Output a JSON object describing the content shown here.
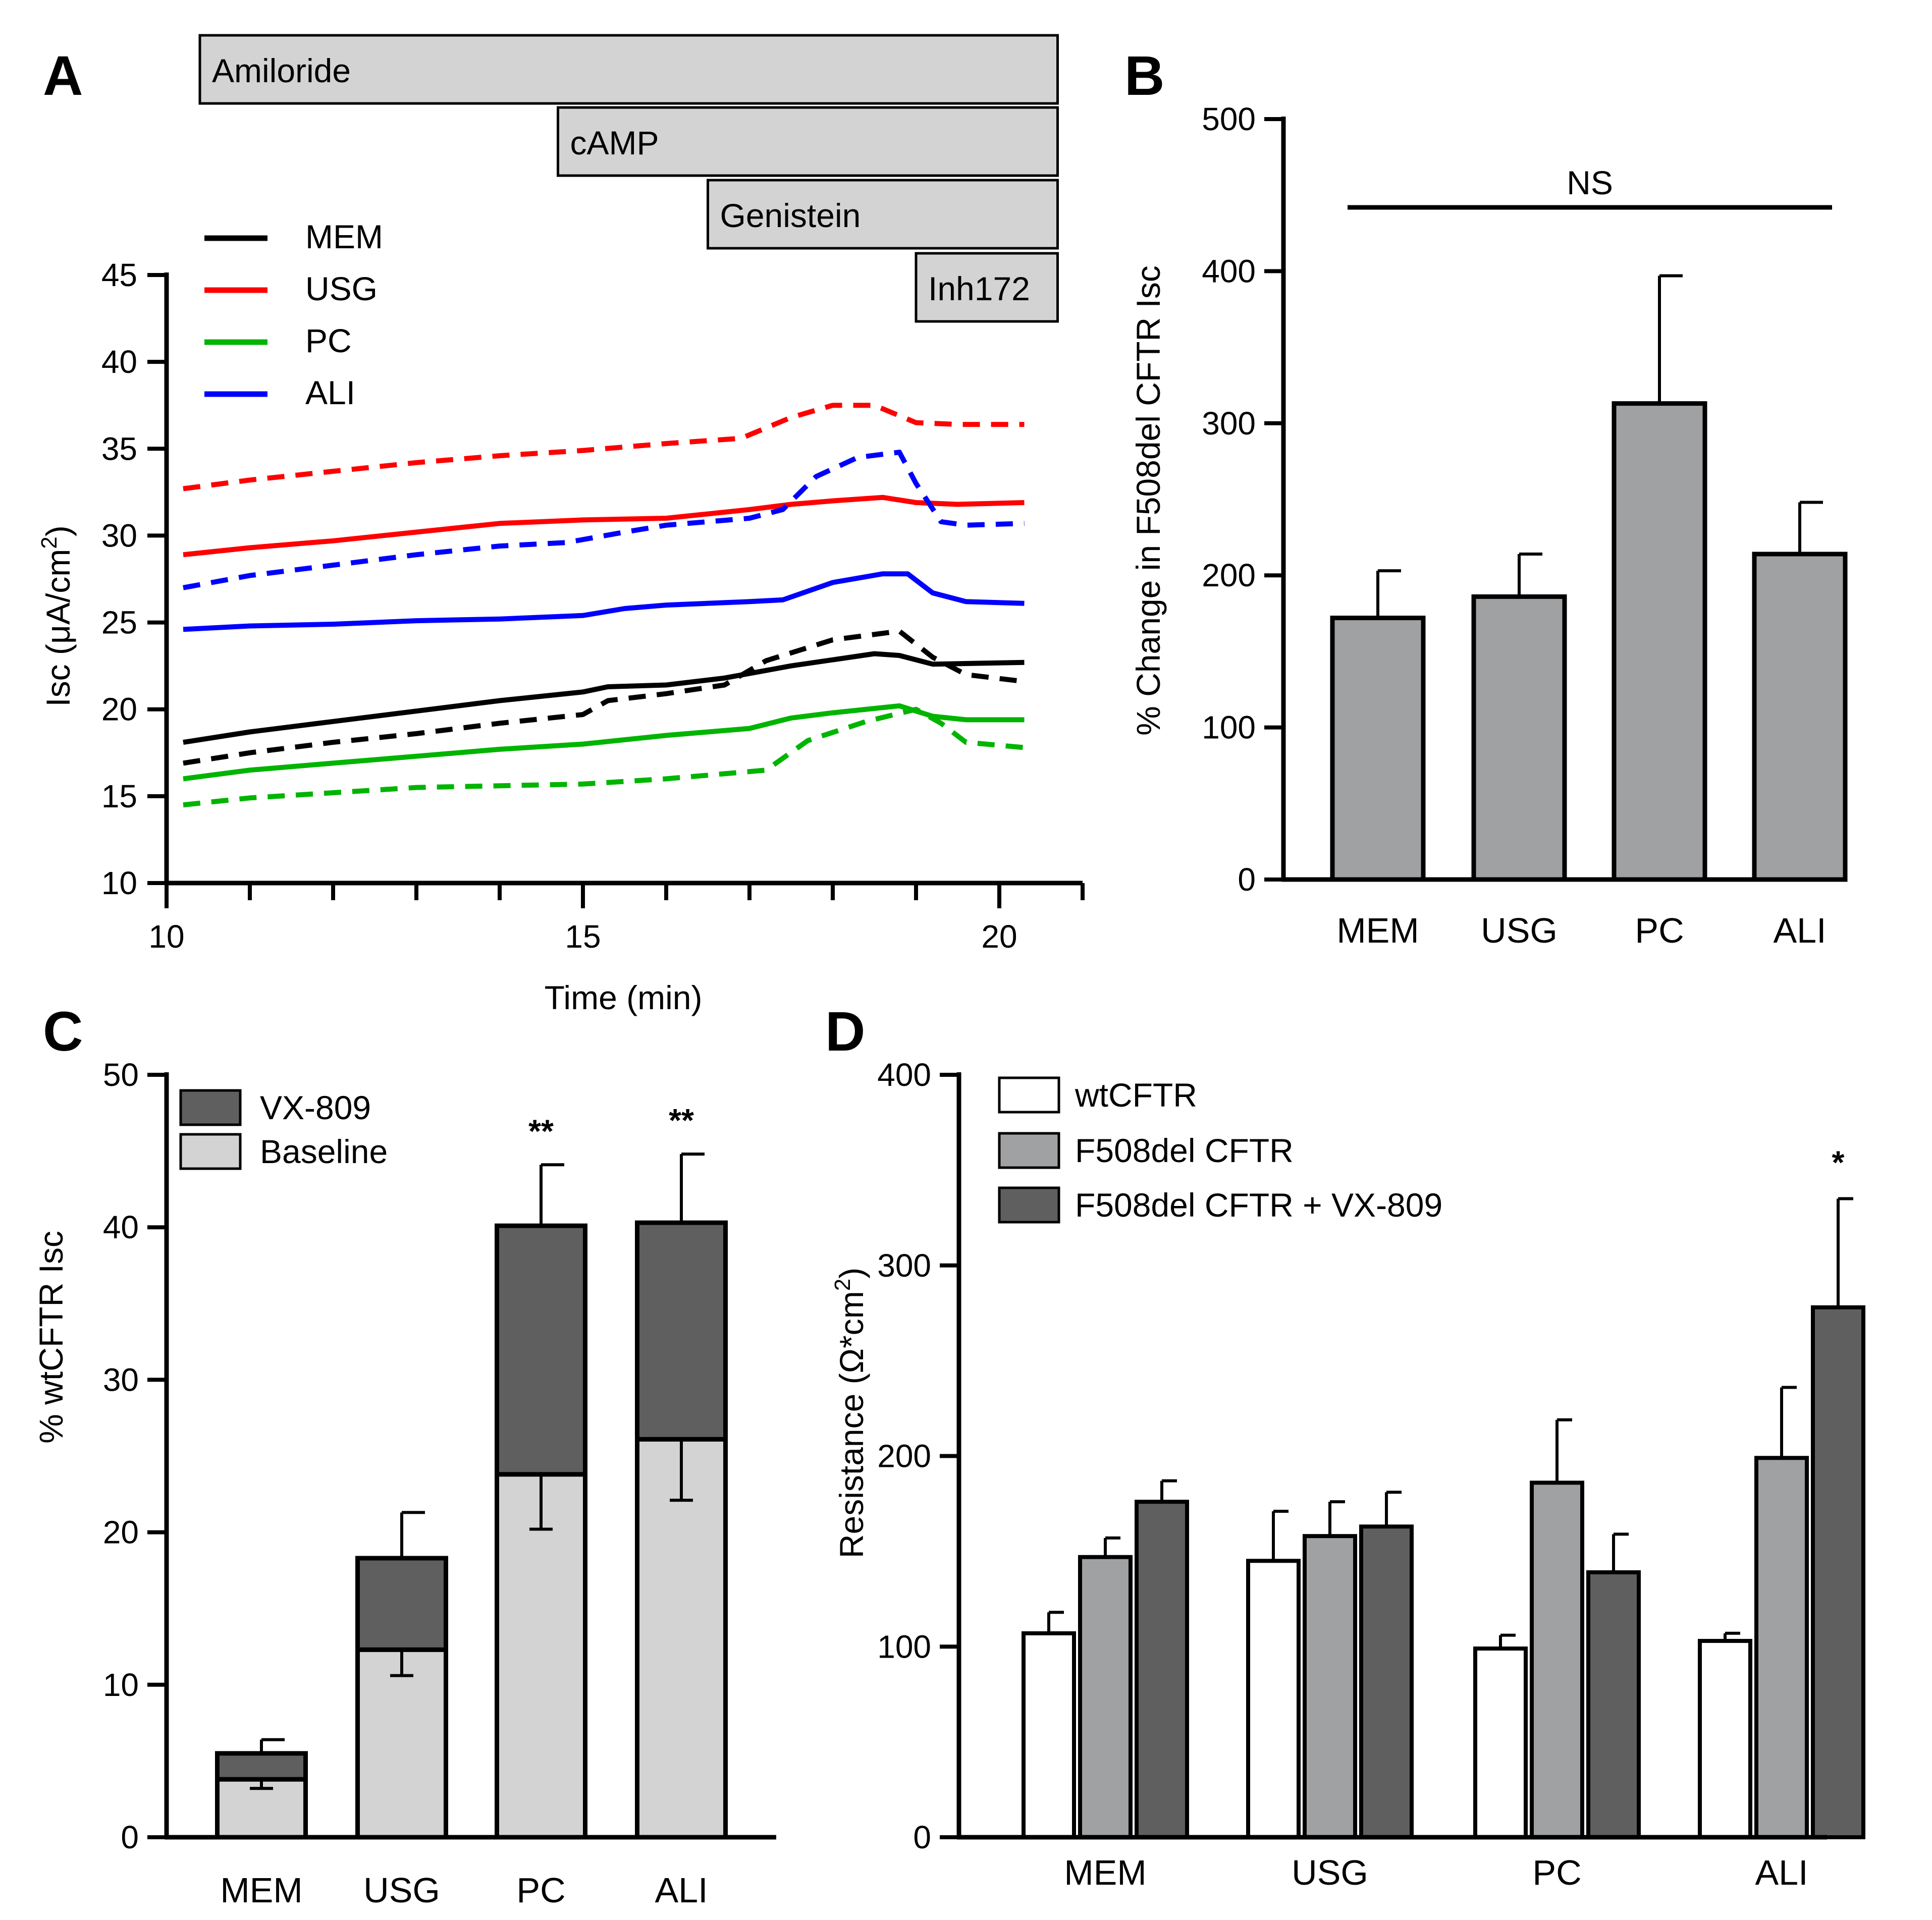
{
  "panel_labels": [
    "A",
    "B",
    "C",
    "D"
  ],
  "chart_data": [
    {
      "id": "A",
      "type": "line",
      "xlabel": "Time (min)",
      "ylabel_main": "Isc (",
      "ylabel_mu": "μ",
      "ylabel_unit": "A/cm",
      "ylabel_sup": "2",
      "ylabel_close": ")",
      "xlim": [
        10,
        21
      ],
      "ylim": [
        10,
        45
      ],
      "xticks": [
        10,
        15,
        20
      ],
      "yticks": [
        10,
        15,
        20,
        25,
        30,
        35,
        40,
        45
      ],
      "treatments": [
        {
          "label": "Amiloride",
          "start": 10.4,
          "end": 20.7
        },
        {
          "label": "cAMP",
          "start": 14.7,
          "end": 20.7
        },
        {
          "label": "Genistein",
          "start": 16.5,
          "end": 20.7
        },
        {
          "label": "Inh172",
          "start": 19.0,
          "end": 20.7
        }
      ],
      "legend": [
        {
          "label": "MEM",
          "color": "#000000"
        },
        {
          "label": "USG",
          "color": "#ff0000"
        },
        {
          "label": "PC",
          "color": "#00b400"
        },
        {
          "label": "ALI",
          "color": "#0000ff"
        }
      ],
      "series": [
        {
          "name": "MEM",
          "style": "solid",
          "color": "#000000",
          "x": [
            10.2,
            11,
            12,
            13,
            14,
            15,
            15.3,
            16,
            16.7,
            17.5,
            18.5,
            18.8,
            19.2,
            20.3
          ],
          "y": [
            18.1,
            18.7,
            19.3,
            19.9,
            20.5,
            21.0,
            21.3,
            21.4,
            21.8,
            22.5,
            23.2,
            23.1,
            22.6,
            22.7
          ]
        },
        {
          "name": "MEM",
          "style": "dashed",
          "color": "#000000",
          "x": [
            10.2,
            11,
            12,
            13,
            14,
            15,
            15.3,
            16,
            16.7,
            17.2,
            18,
            18.8,
            19.2,
            19.6,
            20.3
          ],
          "y": [
            16.9,
            17.5,
            18.1,
            18.6,
            19.2,
            19.7,
            20.5,
            20.9,
            21.4,
            22.8,
            24.0,
            24.5,
            23.0,
            22.0,
            21.6
          ]
        },
        {
          "name": "USG",
          "style": "solid",
          "color": "#ff0000",
          "x": [
            10.2,
            11,
            12,
            13,
            14,
            15,
            16,
            17,
            17.5,
            18,
            18.6,
            19,
            19.5,
            20.3
          ],
          "y": [
            28.9,
            29.3,
            29.7,
            30.2,
            30.7,
            30.9,
            31.0,
            31.5,
            31.8,
            32.0,
            32.2,
            31.9,
            31.8,
            31.9
          ]
        },
        {
          "name": "USG",
          "style": "dashed",
          "color": "#ff0000",
          "x": [
            10.2,
            11,
            12,
            13,
            14,
            15,
            16,
            16.9,
            17.5,
            18,
            18.5,
            19,
            19.5,
            20.3
          ],
          "y": [
            32.7,
            33.2,
            33.7,
            34.2,
            34.6,
            34.9,
            35.3,
            35.6,
            36.8,
            37.5,
            37.5,
            36.5,
            36.4,
            36.4
          ]
        },
        {
          "name": "PC",
          "style": "solid",
          "color": "#00b400",
          "x": [
            10.2,
            11,
            12,
            13,
            14,
            15,
            16,
            17,
            17.5,
            18,
            18.8,
            19.2,
            19.6,
            20.3
          ],
          "y": [
            16.0,
            16.5,
            16.9,
            17.3,
            17.7,
            18.0,
            18.5,
            18.9,
            19.5,
            19.8,
            20.2,
            19.6,
            19.4,
            19.4
          ]
        },
        {
          "name": "PC",
          "style": "dashed",
          "color": "#00b400",
          "x": [
            10.2,
            11,
            12,
            13,
            14,
            15,
            16,
            17.2,
            17.7,
            18.4,
            19.0,
            19.3,
            19.6,
            20.3
          ],
          "y": [
            14.5,
            14.9,
            15.2,
            15.5,
            15.6,
            15.7,
            16.0,
            16.5,
            18.2,
            19.3,
            20.0,
            19.2,
            18.1,
            17.8
          ]
        },
        {
          "name": "ALI",
          "style": "solid",
          "color": "#0000ff",
          "x": [
            10.2,
            11,
            12,
            13,
            14,
            15,
            15.5,
            16,
            17,
            17.4,
            18,
            18.6,
            18.9,
            19.2,
            19.6,
            20.3
          ],
          "y": [
            24.6,
            24.8,
            24.9,
            25.1,
            25.2,
            25.4,
            25.8,
            26.0,
            26.2,
            26.3,
            27.3,
            27.8,
            27.8,
            26.7,
            26.2,
            26.1
          ]
        },
        {
          "name": "ALI",
          "style": "dashed",
          "color": "#0000ff",
          "x": [
            10.2,
            11,
            12,
            13,
            14,
            14.8,
            15.5,
            16,
            17,
            17.4,
            17.8,
            18.3,
            18.8,
            19.0,
            19.3,
            19.6,
            20.3
          ],
          "y": [
            27.0,
            27.7,
            28.3,
            28.9,
            29.4,
            29.6,
            30.2,
            30.6,
            31.0,
            31.5,
            33.4,
            34.5,
            34.8,
            33.0,
            30.8,
            30.6,
            30.7
          ]
        }
      ]
    },
    {
      "id": "B",
      "type": "bar",
      "ylabel": "% Change in F508del CFTR  Isc",
      "categories": [
        "MEM",
        "USG",
        "PC",
        "ALI"
      ],
      "values": [
        172,
        186,
        313,
        214
      ],
      "errors": [
        31,
        28,
        84,
        34
      ],
      "ylim": [
        0,
        500
      ],
      "yticks": [
        0,
        100,
        200,
        300,
        400,
        500
      ],
      "annotation": "NS",
      "bar_color": "#a0a1a3"
    },
    {
      "id": "C",
      "type": "bar",
      "stacked": true,
      "ylabel": "% wtCFTR Isc",
      "categories": [
        "MEM",
        "USG",
        "PC",
        "ALI"
      ],
      "ylim": [
        0,
        50
      ],
      "yticks": [
        0,
        10,
        20,
        30,
        40,
        50
      ],
      "series": [
        {
          "name": "Baseline",
          "color": "#d3d3d3",
          "values": [
            3.8,
            12.3,
            23.8,
            26.1
          ],
          "errors_down": [
            0.6,
            1.7,
            3.6,
            4.0
          ]
        },
        {
          "name": "VX-809",
          "color": "#5f5f5f",
          "values": [
            1.7,
            6.0,
            16.3,
            14.2
          ],
          "errors_up": [
            0.9,
            3.0,
            4.0,
            4.5
          ]
        }
      ],
      "legend": [
        {
          "label": "VX-809",
          "color": "#5f5f5f"
        },
        {
          "label": "Baseline",
          "color": "#d3d3d3"
        }
      ],
      "significance": [
        "",
        "",
        "**",
        "**"
      ]
    },
    {
      "id": "D",
      "type": "bar",
      "ylabel_main": "Resistance (",
      "ylabel_unit": "Ω*cm",
      "ylabel_sup": "2",
      "ylabel_close": ")",
      "categories": [
        "MEM",
        "USG",
        "PC",
        "ALI"
      ],
      "ylim": [
        0,
        400
      ],
      "yticks": [
        0,
        100,
        200,
        300,
        400
      ],
      "series": [
        {
          "name": "wtCFTR",
          "color": "#ffffff",
          "values": [
            107,
            145,
            99,
            103
          ],
          "errors": [
            11,
            26,
            7,
            4
          ]
        },
        {
          "name": "F508del CFTR",
          "color": "#a0a1a3",
          "values": [
            147,
            158,
            186,
            199
          ],
          "errors": [
            10,
            18,
            33,
            37
          ]
        },
        {
          "name": "F508del CFTR + VX-809",
          "color": "#5f5f5f",
          "values": [
            176,
            163,
            139,
            278
          ],
          "errors": [
            11,
            18,
            20,
            57
          ]
        }
      ],
      "significance": [
        "",
        "",
        "",
        "*"
      ]
    }
  ]
}
